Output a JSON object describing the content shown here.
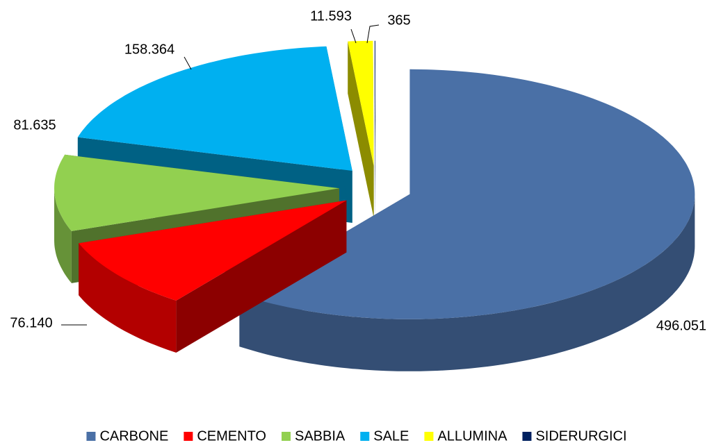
{
  "chart_data": {
    "type": "pie",
    "categories": [
      "CARBONE",
      "CEMENTO",
      "SABBIA",
      "SALE",
      "ALLUMINA",
      "SIDERURGICI"
    ],
    "values": [
      496051,
      76140,
      81635,
      158364,
      11593,
      365
    ],
    "value_labels": [
      "496.051",
      "76.140",
      "81.635",
      "158.364",
      "11.593",
      "365"
    ],
    "colors": [
      "#4a70a6",
      "#ff0000",
      "#92d050",
      "#00b0f0",
      "#ffff00",
      "#002060"
    ],
    "exploded": true,
    "legend": "bottom"
  }
}
